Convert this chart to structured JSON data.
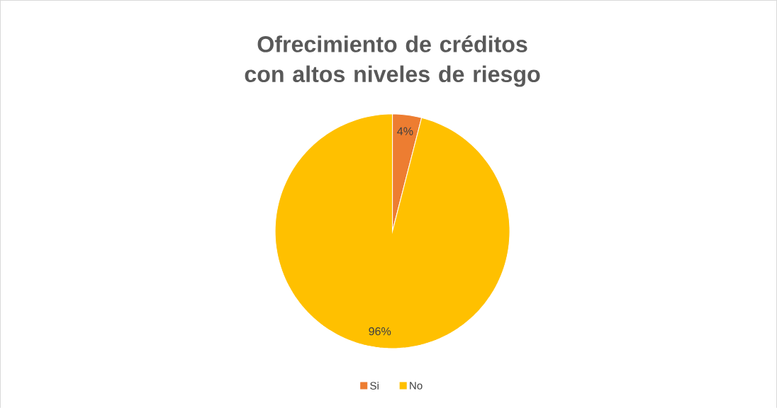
{
  "chart_data": {
    "type": "pie",
    "title": "Ofrecimiento de créditos con altos niveles de riesgo",
    "categories": [
      "Si",
      "No"
    ],
    "values": [
      4,
      96
    ],
    "colors": [
      "#ed7d31",
      "#ffc000"
    ],
    "value_labels": [
      "4%",
      "96%"
    ],
    "legend": "bottom"
  }
}
